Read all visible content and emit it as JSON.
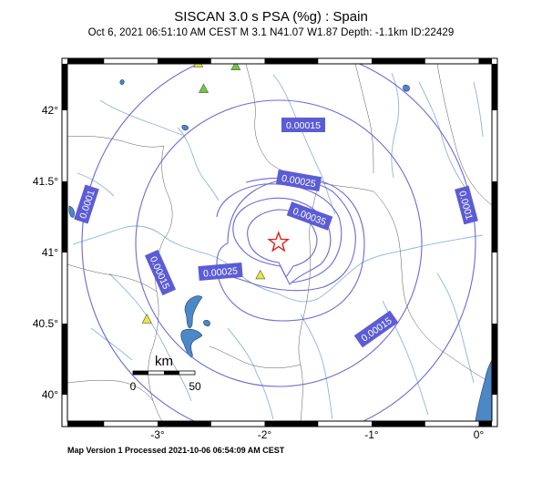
{
  "header": {
    "title": "SISCAN 3.0 s PSA (%g) : Spain",
    "subtitle": "Oct  6, 2021 06:51:10 AM CEST   M 3.1   N41.07 W1.87   Depth: -1.1km   ID:22429"
  },
  "footer": {
    "text": "Map Version 1 Processed 2021-10-06 06:54:09 AM CEST"
  },
  "axes": {
    "lon_ticks": [
      {
        "label": "-3°",
        "value": -3
      },
      {
        "label": "-2°",
        "value": -2
      },
      {
        "label": "-1°",
        "value": -1
      },
      {
        "label": "0°",
        "value": 0
      }
    ],
    "lat_ticks": [
      {
        "label": "42°",
        "value": 42
      },
      {
        "label": "41.5°",
        "value": 41.5
      },
      {
        "label": "41°",
        "value": 41
      },
      {
        "label": "40.5°",
        "value": 40.5
      },
      {
        "label": "40°",
        "value": 40
      }
    ]
  },
  "scalebar": {
    "unit": "km",
    "start_label": "0",
    "end_label": "50"
  },
  "contour_labels": [
    "0.00015",
    "0.00025",
    "0.00035",
    "0.0001",
    "0.00015",
    "0.00025",
    "0.00015",
    "0.0001"
  ],
  "epicenter": {
    "lat": 41.07,
    "lon": -1.87,
    "color": "#e0201b"
  },
  "stations": [
    {
      "lat": 42.33,
      "lon": -2.62,
      "color": "#e7e838"
    },
    {
      "lat": 42.31,
      "lon": -2.27,
      "color": "#6ccb3a"
    },
    {
      "lat": 42.15,
      "lon": -2.57,
      "color": "#6ccb3a"
    },
    {
      "lat": 40.84,
      "lon": -2.04,
      "color": "#e7e838"
    },
    {
      "lat": 40.53,
      "lon": -3.1,
      "color": "#e7e838"
    }
  ],
  "colors": {
    "contour": "#6a6ad6",
    "river": "#8fb4d6",
    "border": "#555555",
    "water": "#4c87c6"
  }
}
